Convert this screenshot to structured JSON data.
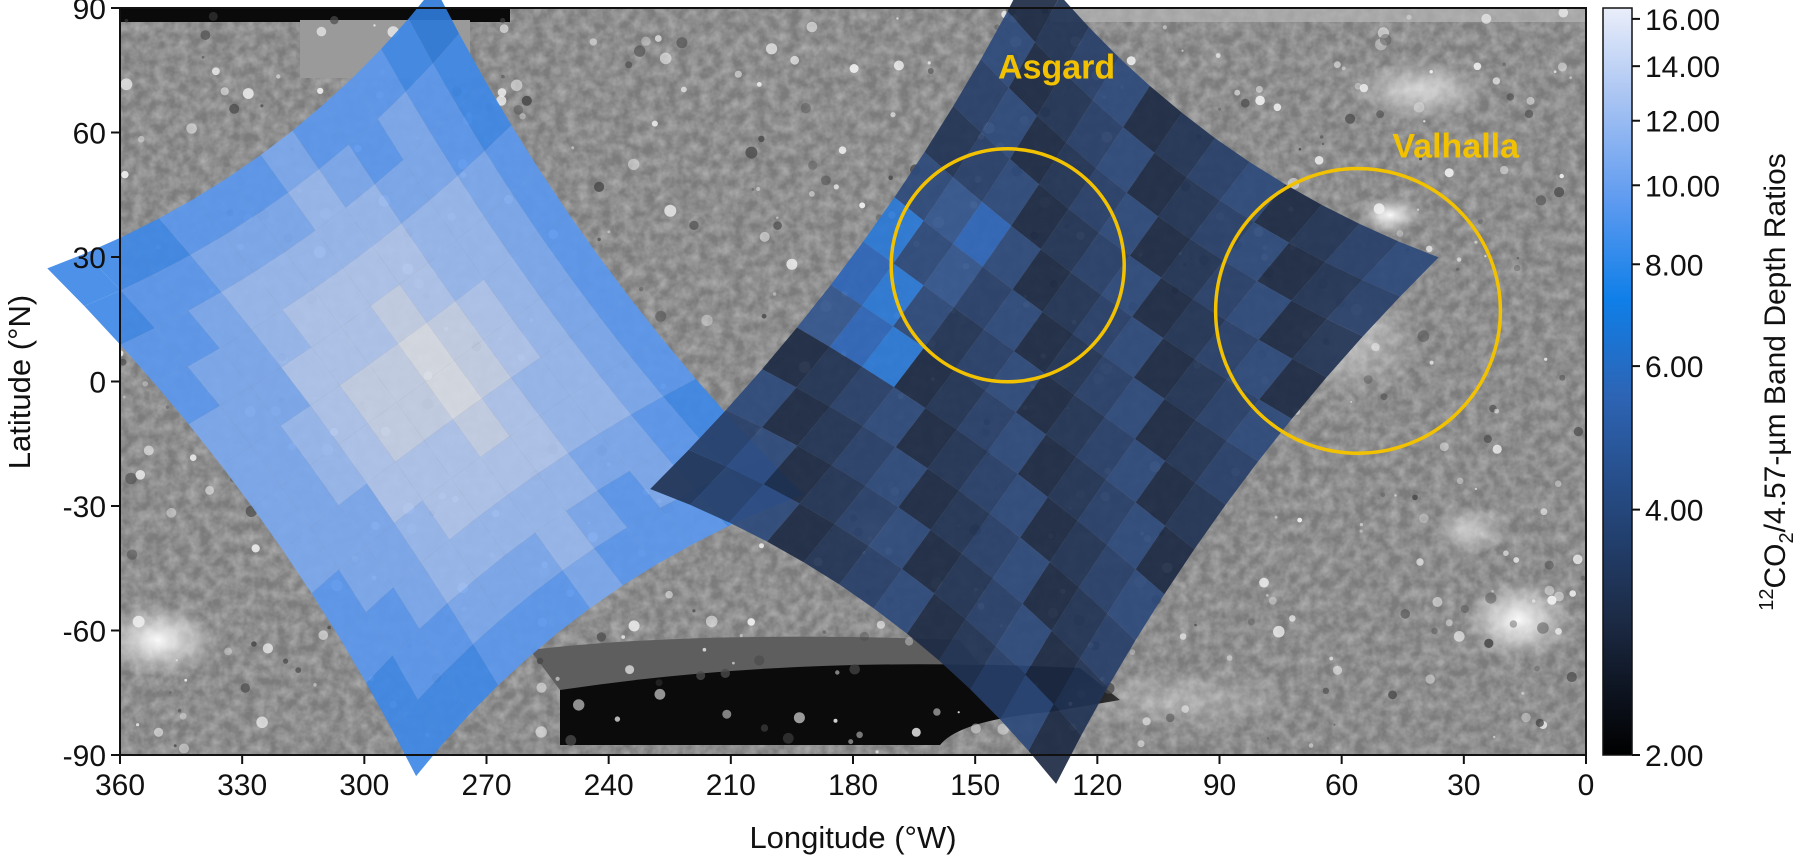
{
  "map": {
    "x_axis": {
      "title": "Longitude (°W)",
      "ticks": [
        "360",
        "330",
        "300",
        "270",
        "240",
        "210",
        "180",
        "150",
        "120",
        "90",
        "60",
        "30",
        "0"
      ],
      "range": [
        360,
        0
      ]
    },
    "y_axis": {
      "title": "Latitude (°N)",
      "ticks": [
        "90",
        "60",
        "30",
        "0",
        "-30",
        "-60",
        "-90"
      ],
      "range": [
        -90,
        90
      ]
    },
    "features": [
      {
        "name": "Asgard",
        "lon": 142,
        "lat": 28,
        "radius_deg": 27,
        "label_lon": 130,
        "label_lat": 73
      },
      {
        "name": "Valhalla",
        "lon": 56,
        "lat": 17,
        "radius_deg": 33,
        "label_lon": 32,
        "label_lat": 54
      }
    ],
    "feature_color": "#f2c200",
    "basemap": "grayscale cratered surface (Callisto)",
    "footprints": [
      {
        "id": "western",
        "center_lon": 285,
        "center_lat": 0,
        "level": "high (~8-14)"
      },
      {
        "id": "central",
        "center_lon": 135,
        "center_lat": 0,
        "level": "low (~2-5)"
      }
    ]
  },
  "colorbar": {
    "title_sup": "12",
    "title_main": "CO",
    "title_sub": "2",
    "title_rest": "/4.57-µm Band Depth Ratios",
    "ticks": [
      "16.00",
      "14.00",
      "12.00",
      "10.00",
      "8.00",
      "6.00",
      "4.00",
      "2.00"
    ],
    "tick_values": [
      16,
      14,
      12,
      10,
      8,
      6,
      4,
      2
    ],
    "range": [
      2,
      16.5
    ],
    "scale": "log",
    "colors": [
      "#000000",
      "#1c2a44",
      "#2d64b4",
      "#0f7fe8",
      "#5d9af0",
      "#a9c4f2",
      "#eaeefa"
    ]
  }
}
